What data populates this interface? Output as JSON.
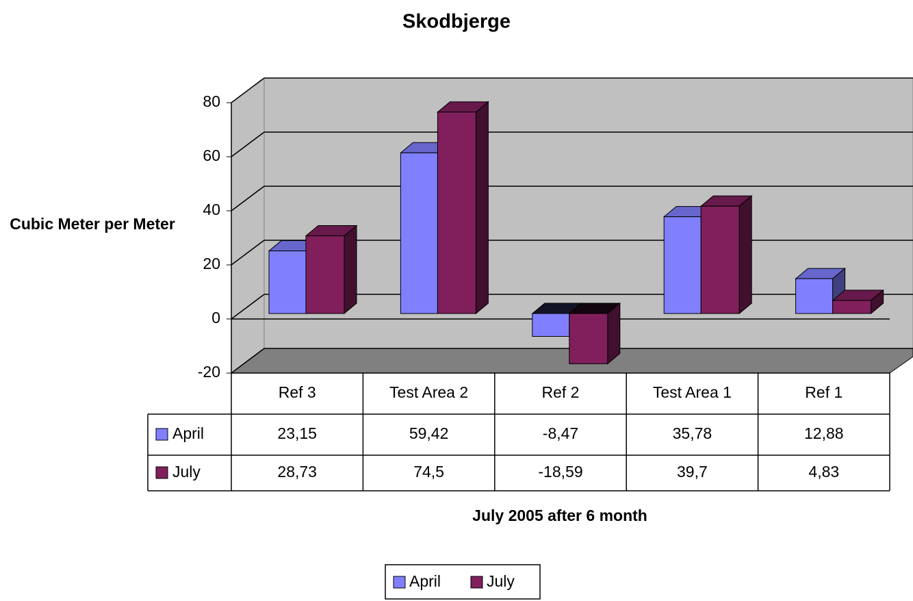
{
  "chart_data": {
    "type": "bar3d",
    "title": "Skodbjerge",
    "y_label": "Cubic Meter per Meter",
    "x_label": "July 2005 after 6 month",
    "categories": [
      "Ref 3",
      "Test Area 2",
      "Ref  2",
      "Test Area 1",
      "Ref 1"
    ],
    "series": [
      {
        "name": "April",
        "color": "#8080ff",
        "values": [
          23.15,
          59.42,
          -8.47,
          35.78,
          12.88
        ],
        "value_labels": [
          "23,15",
          "59,42",
          "-8,47",
          "35,78",
          "12,88"
        ]
      },
      {
        "name": "July",
        "color": "#801f5c",
        "values": [
          28.73,
          74.5,
          -18.59,
          39.7,
          4.83
        ],
        "value_labels": [
          "28,73",
          "74,5",
          "-18,59",
          "39,7",
          "4,83"
        ]
      }
    ],
    "ylim": [
      -20,
      80
    ],
    "yticks": [
      -20,
      0,
      20,
      40,
      60,
      80
    ],
    "grid": true
  }
}
